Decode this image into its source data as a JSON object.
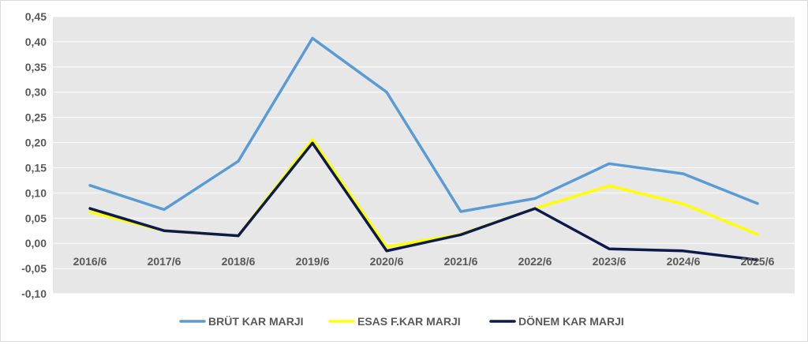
{
  "chart_data": {
    "type": "line",
    "title": "",
    "xlabel": "",
    "ylabel": "",
    "categories": [
      "2016/6",
      "2017/6",
      "2018/6",
      "2019/6",
      "2020/6",
      "2021/6",
      "2022/6",
      "2023/6",
      "2024/6",
      "2025/6"
    ],
    "ylim": [
      -0.1,
      0.45
    ],
    "yticks": [
      "0,45",
      "0,40",
      "0,35",
      "0,30",
      "0,25",
      "0,20",
      "0,15",
      "0,10",
      "0,05",
      "0,00",
      "-0,05",
      "-0,10"
    ],
    "ytick_values": [
      0.45,
      0.4,
      0.35,
      0.3,
      0.25,
      0.2,
      0.15,
      0.1,
      0.05,
      0.0,
      -0.05,
      -0.1
    ],
    "grid": true,
    "legend_position": "bottom",
    "plot_background": "#e7e7e7",
    "series": [
      {
        "name": "BRÜT KAR MARJI",
        "color": "#5b9bd5",
        "values": [
          0.115,
          0.067,
          0.163,
          0.407,
          0.3,
          0.063,
          0.089,
          0.158,
          0.138,
          0.079
        ]
      },
      {
        "name": "ESAS F.KAR MARJI",
        "color": "#ffff00",
        "values": [
          0.062,
          0.025,
          0.015,
          0.206,
          -0.007,
          0.018,
          0.069,
          0.114,
          0.078,
          0.018
        ]
      },
      {
        "name": "DÖNEM KAR MARJI",
        "color": "#0d1b4c",
        "values": [
          0.069,
          0.025,
          0.015,
          0.199,
          -0.015,
          0.017,
          0.069,
          -0.011,
          -0.015,
          -0.033
        ]
      }
    ]
  }
}
